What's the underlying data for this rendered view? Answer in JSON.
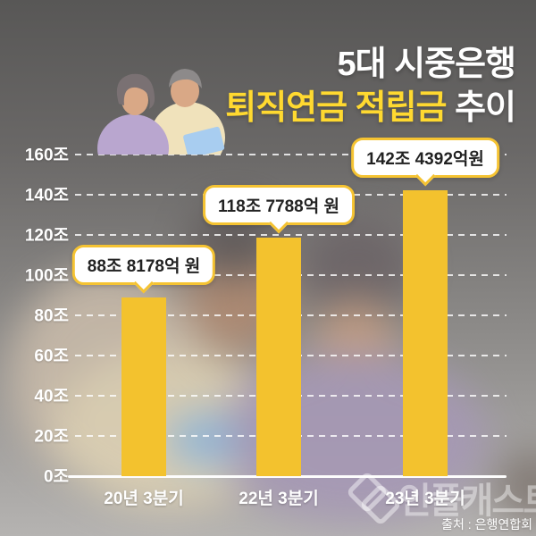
{
  "title": {
    "line1": "5대 시중은행",
    "line2_highlight": "퇴직연금 적립금",
    "line2_suffix": " 추이"
  },
  "colors": {
    "bar_yellow": "#f3c22e",
    "callout_border_yellow": "#f5c332",
    "title_highlight_yellow": "#ffd930",
    "background_top_gray": "#585756",
    "background_bottom_gray": "#b5b3b1",
    "text_white": "#ffffff",
    "callout_text": "#222222"
  },
  "chart_data": {
    "type": "bar",
    "title": "5대 시중은행 퇴직연금 적립금 추이",
    "categories": [
      "20년 3분기",
      "22년 3분기",
      "23년 3분기"
    ],
    "values": [
      88.8178,
      118.7788,
      142.4392
    ],
    "unit": "조 원",
    "data_labels": [
      "88조 8178억 원",
      "118조 7788억 원",
      "142조 4392억원"
    ],
    "yticks": [
      "0조",
      "20조",
      "40조",
      "60조",
      "80조",
      "100조",
      "120조",
      "140조",
      "160조"
    ],
    "ytick_step": 20,
    "ylim": [
      0,
      160
    ],
    "grid": "dashed-horizontal",
    "legend": "none",
    "bar_color": "#f3c22e"
  },
  "photo": {
    "description_icon": "elderly-couple-photo"
  },
  "watermark": {
    "logo_icon": "overlapping-squares-icon",
    "brand": "인플캐스트"
  },
  "footer": {
    "source": "출처 : 은행연합회"
  }
}
